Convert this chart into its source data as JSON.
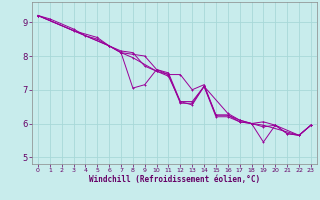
{
  "xlabel": "Windchill (Refroidissement éolien,°C)",
  "bg_color": "#c8ecec",
  "grid_color": "#a8d8d8",
  "line_color": "#990099",
  "spine_color": "#888888",
  "tick_color": "#660066",
  "xlim": [
    -0.5,
    23.5
  ],
  "ylim": [
    4.8,
    9.6
  ],
  "yticks": [
    5,
    6,
    7,
    8,
    9
  ],
  "xticks": [
    0,
    1,
    2,
    3,
    4,
    5,
    6,
    7,
    8,
    9,
    10,
    11,
    12,
    13,
    14,
    15,
    16,
    17,
    18,
    19,
    20,
    21,
    22,
    23
  ],
  "series1": [
    [
      0,
      9.2
    ],
    [
      1,
      9.1
    ],
    [
      3,
      8.8
    ],
    [
      4,
      8.6
    ],
    [
      5,
      8.5
    ],
    [
      6,
      8.3
    ],
    [
      7,
      8.1
    ],
    [
      8,
      7.05
    ],
    [
      9,
      7.15
    ],
    [
      10,
      7.6
    ],
    [
      11,
      7.45
    ],
    [
      12,
      6.6
    ],
    [
      13,
      6.6
    ],
    [
      14,
      7.1
    ],
    [
      15,
      6.25
    ],
    [
      16,
      6.25
    ],
    [
      17,
      6.05
    ],
    [
      18,
      6.0
    ],
    [
      19,
      5.45
    ],
    [
      20,
      5.95
    ],
    [
      21,
      5.7
    ],
    [
      22,
      5.65
    ],
    [
      23,
      5.95
    ]
  ],
  "series2": [
    [
      0,
      9.2
    ],
    [
      3,
      8.75
    ],
    [
      5,
      8.55
    ],
    [
      6,
      8.3
    ],
    [
      7,
      8.1
    ],
    [
      8,
      7.95
    ],
    [
      10,
      7.55
    ],
    [
      11,
      7.4
    ],
    [
      12,
      6.65
    ],
    [
      13,
      6.65
    ],
    [
      14,
      7.1
    ],
    [
      16,
      6.3
    ],
    [
      17,
      6.1
    ],
    [
      18,
      6.0
    ],
    [
      19,
      5.95
    ],
    [
      22,
      5.65
    ],
    [
      23,
      5.95
    ]
  ],
  "series3": [
    [
      0,
      9.2
    ],
    [
      6,
      8.3
    ],
    [
      7,
      8.15
    ],
    [
      8,
      8.1
    ],
    [
      9,
      7.7
    ],
    [
      10,
      7.55
    ],
    [
      11,
      7.45
    ],
    [
      12,
      7.45
    ],
    [
      13,
      7.0
    ],
    [
      14,
      7.15
    ],
    [
      15,
      6.25
    ],
    [
      16,
      6.25
    ],
    [
      17,
      6.1
    ],
    [
      18,
      6.0
    ],
    [
      19,
      6.05
    ],
    [
      20,
      5.95
    ],
    [
      21,
      5.7
    ],
    [
      22,
      5.65
    ],
    [
      23,
      5.95
    ]
  ],
  "series4": [
    [
      0,
      9.2
    ],
    [
      6,
      8.3
    ],
    [
      7,
      8.1
    ],
    [
      8,
      8.05
    ],
    [
      9,
      8.0
    ],
    [
      10,
      7.6
    ],
    [
      11,
      7.5
    ],
    [
      12,
      6.65
    ],
    [
      13,
      6.55
    ],
    [
      14,
      7.1
    ],
    [
      15,
      6.2
    ],
    [
      16,
      6.2
    ],
    [
      17,
      6.05
    ],
    [
      18,
      6.0
    ],
    [
      19,
      5.9
    ],
    [
      20,
      5.95
    ],
    [
      22,
      5.65
    ],
    [
      23,
      5.95
    ]
  ],
  "xlabel_fontsize": 5.5,
  "tick_fontsize_x": 4.5,
  "tick_fontsize_y": 6.0,
  "linewidth": 0.7,
  "markersize": 2.0,
  "markeredgewidth": 0.7
}
